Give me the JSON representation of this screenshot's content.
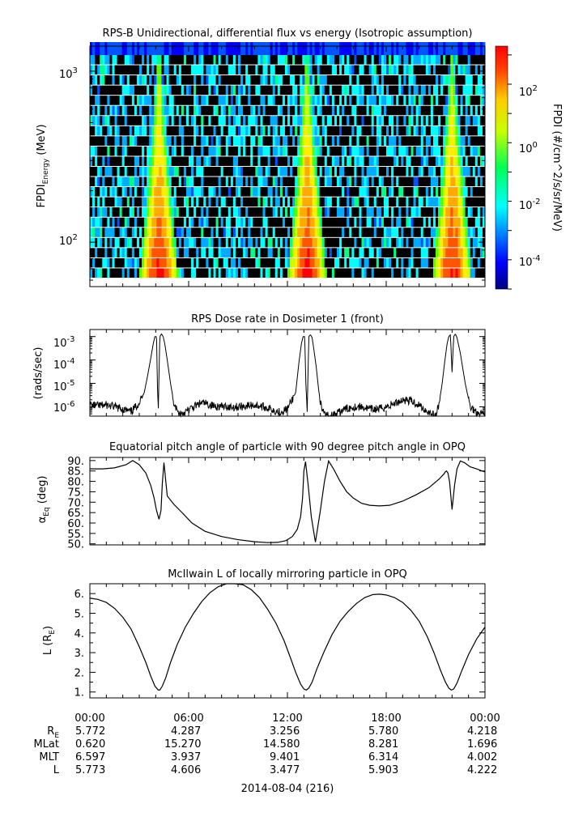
{
  "chart_data": [
    {
      "type": "heatmap",
      "title": "RPS-B  Unidirectional, differential flux vs energy (Isotropic assumption)",
      "ylabel_main": "FPDI",
      "ylabel_sub": "Energy",
      "ylabel_unit": " (MeV)",
      "yscale": "log",
      "ylim": [
        55,
        1400
      ],
      "ytick_labels": [
        {
          "base": "10",
          "exp": "3",
          "value": 1000
        },
        {
          "base": "10",
          "exp": "2",
          "value": 100
        }
      ],
      "zlabel": "FPDI (#/cm^2/s/sr/MeV)",
      "zscale": "log",
      "zlim": [
        -5,
        3.3
      ],
      "colorbar_ticks": [
        {
          "base": "10",
          "exp": "2",
          "value": 2
        },
        {
          "base": "10",
          "exp": "0",
          "value": 0
        },
        {
          "base": "10",
          "exp": "-2",
          "value": -2
        },
        {
          "base": "10",
          "exp": "-4",
          "value": -4
        }
      ],
      "peaks_hours": [
        4.2,
        13.2,
        22.0
      ],
      "xlim_hours": [
        0,
        24
      ]
    },
    {
      "type": "line",
      "title": "RPS  Dose rate in Dosimeter 1 (front)",
      "ylabel": "(rads/sec)",
      "yscale": "log",
      "ylim": [
        4e-07,
        0.002
      ],
      "ytick_labels": [
        {
          "base": "10",
          "exp": "-3",
          "value": -3
        },
        {
          "base": "10",
          "exp": "-4",
          "value": -4
        },
        {
          "base": "10",
          "exp": "-5",
          "value": -5
        },
        {
          "base": "10",
          "exp": "-6",
          "value": -6
        }
      ],
      "x": [
        0,
        0.5,
        1,
        1.5,
        2,
        2.5,
        3,
        3.3,
        3.5,
        3.7,
        3.85,
        3.95,
        4.05,
        4.1,
        4.15,
        4.25,
        4.35,
        4.45,
        4.55,
        4.7,
        4.9,
        5.1,
        5.4,
        5.8,
        6.2,
        6.8,
        7.5,
        8.2,
        9,
        10,
        10.8,
        11.5,
        12,
        12.5,
        12.7,
        12.85,
        12.95,
        13.05,
        13.12,
        13.2,
        13.3,
        13.4,
        13.5,
        13.6,
        13.75,
        13.9,
        14.1,
        14.5,
        15,
        15.5,
        16,
        16.5,
        17,
        17.5,
        18,
        18.5,
        19,
        19.5,
        20,
        20.3,
        20.6,
        20.8,
        21,
        21.2,
        21.4,
        21.55,
        21.7,
        21.8,
        21.9,
        22.0,
        22.1,
        22.2,
        22.3,
        22.5,
        22.8,
        23.1,
        23.5,
        24
      ],
      "values": [
        1.2e-06,
        1.1e-06,
        1.2e-06,
        1e-06,
        8e-07,
        6e-07,
        1.5e-06,
        4e-06,
        2e-05,
        0.00012,
        0.0005,
        0.001,
        0.001,
        1e-05,
        6e-07,
        0.001,
        0.0013,
        0.001,
        0.0005,
        0.0001,
        1e-05,
        1.5e-06,
        5e-07,
        6e-07,
        9e-07,
        1.5e-06,
        1.1e-06,
        1e-06,
        1e-06,
        1.2e-06,
        9e-07,
        6e-07,
        8e-07,
        4e-06,
        8e-05,
        0.0005,
        0.001,
        0.001,
        1e-05,
        6e-07,
        0.001,
        0.0012,
        0.0009,
        0.0003,
        5e-05,
        5e-06,
        6e-07,
        4e-07,
        5e-07,
        8e-07,
        1e-06,
        1e-06,
        8e-07,
        8e-07,
        1e-06,
        1.4e-06,
        2e-06,
        1.8e-06,
        1.2e-06,
        8e-07,
        6e-07,
        5e-07,
        4e-07,
        1.2e-06,
        1e-05,
        8e-05,
        0.0005,
        0.001,
        0.0012,
        3e-05,
        0.001,
        0.0013,
        0.0009,
        0.0002,
        1e-05,
        1e-06,
        6e-07,
        5e-07
      ]
    },
    {
      "type": "line",
      "title": "Equatorial pitch angle of particle with 90 degree pitch angle in OPQ",
      "ylabel_main": "α",
      "ylabel_sub": "Eq",
      "ylabel_unit": " (deg)",
      "ylim": [
        49.5,
        91.5
      ],
      "ytick_labels": [
        "90.",
        "85.",
        "80.",
        "75.",
        "70.",
        "65.",
        "60.",
        "55.",
        "50."
      ],
      "x": [
        0,
        0.8,
        1.5,
        2.2,
        2.6,
        3.0,
        3.4,
        3.7,
        3.9,
        4.05,
        4.2,
        4.32,
        4.4,
        4.5,
        4.7,
        5.1,
        5.6,
        6.2,
        7.0,
        8.0,
        9.0,
        10.0,
        10.8,
        11.4,
        11.9,
        12.3,
        12.6,
        12.8,
        12.92,
        13.0,
        13.1,
        13.25,
        13.45,
        13.7,
        14.0,
        14.25,
        14.5,
        14.8,
        15.2,
        15.6,
        16.0,
        16.5,
        17.0,
        17.6,
        18.2,
        19.0,
        19.8,
        20.6,
        21.2,
        21.5,
        21.58,
        21.66,
        21.75,
        21.85,
        22.0,
        22.15,
        22.3,
        22.5,
        22.75,
        23.1,
        23.5,
        24
      ],
      "values": [
        86.0,
        86.0,
        86.5,
        88.0,
        90.0,
        88.0,
        84.0,
        78.0,
        72.0,
        66.0,
        61.8,
        66.0,
        79.0,
        89.0,
        73.0,
        69.0,
        65.0,
        60.0,
        56.0,
        53.5,
        52.0,
        51.0,
        50.6,
        50.7,
        51.5,
        53.5,
        57.0,
        63.0,
        72.0,
        85.0,
        89.5,
        79.0,
        63.0,
        50.8,
        66.0,
        80.0,
        89.8,
        86.0,
        80.0,
        75.0,
        72.0,
        69.5,
        68.5,
        68.2,
        68.5,
        70.5,
        73.5,
        77.0,
        81.0,
        83.5,
        84.5,
        85.0,
        84.0,
        79.8,
        66.5,
        78.0,
        86.0,
        89.8,
        89.0,
        87.0,
        86.0,
        84.5
      ]
    },
    {
      "type": "line",
      "title": "McIlwain L of locally mirroring particle in OPQ",
      "ylabel_main": "L (R",
      "ylabel_sub": "E",
      "ylabel_unit": ")",
      "ylim": [
        0.7,
        6.5
      ],
      "ytick_labels": [
        "6.",
        "5.",
        "4.",
        "3.",
        "2.",
        "1."
      ],
      "ytick_values": [
        6,
        5,
        4,
        3,
        2,
        1
      ],
      "x": [
        0,
        0.5,
        1.0,
        1.5,
        2.0,
        2.5,
        3.0,
        3.4,
        3.7,
        3.95,
        4.15,
        4.25,
        4.4,
        4.6,
        4.9,
        5.3,
        5.8,
        6.3,
        6.8,
        7.3,
        7.8,
        8.3,
        8.8,
        9.3,
        9.8,
        10.3,
        10.8,
        11.3,
        11.8,
        12.2,
        12.5,
        12.8,
        13.0,
        13.15,
        13.3,
        13.5,
        13.8,
        14.2,
        14.7,
        15.2,
        15.7,
        16.2,
        16.7,
        17.2,
        17.6,
        18.0,
        18.5,
        19.0,
        19.5,
        20.0,
        20.5,
        20.9,
        21.3,
        21.6,
        21.8,
        21.95,
        22.1,
        22.3,
        22.6,
        23.0,
        23.5,
        24
      ],
      "values": [
        5.77,
        5.7,
        5.55,
        5.25,
        4.8,
        4.2,
        3.3,
        2.5,
        1.8,
        1.3,
        1.1,
        1.1,
        1.3,
        1.7,
        2.5,
        3.4,
        4.3,
        5.0,
        5.6,
        6.05,
        6.35,
        6.5,
        6.5,
        6.45,
        6.2,
        5.8,
        5.2,
        4.5,
        3.6,
        2.7,
        2.0,
        1.4,
        1.15,
        1.1,
        1.2,
        1.5,
        2.2,
        3.0,
        3.9,
        4.6,
        5.1,
        5.5,
        5.8,
        5.95,
        5.97,
        5.93,
        5.8,
        5.55,
        5.15,
        4.6,
        3.8,
        3.0,
        2.1,
        1.5,
        1.2,
        1.1,
        1.15,
        1.45,
        2.1,
        2.9,
        3.7,
        4.3
      ]
    }
  ],
  "x_axis": {
    "tick_labels": [
      "00:00",
      "06:00",
      "12:00",
      "18:00",
      "00:00"
    ],
    "date_label": "2014-08-04 (216)"
  },
  "ephemeris": [
    {
      "label": "R",
      "label_sub": "E",
      "values": [
        "5.772",
        "4.287",
        "3.256",
        "5.780",
        "4.218"
      ]
    },
    {
      "label": "MLat",
      "label_sub": "",
      "values": [
        "0.620",
        "15.270",
        "14.580",
        "8.281",
        "1.696"
      ]
    },
    {
      "label": "MLT",
      "label_sub": "",
      "values": [
        "6.597",
        "3.937",
        "9.401",
        "6.314",
        "4.002"
      ]
    },
    {
      "label": "L",
      "label_sub": "",
      "values": [
        "5.773",
        "4.606",
        "3.477",
        "5.903",
        "4.222"
      ]
    }
  ]
}
